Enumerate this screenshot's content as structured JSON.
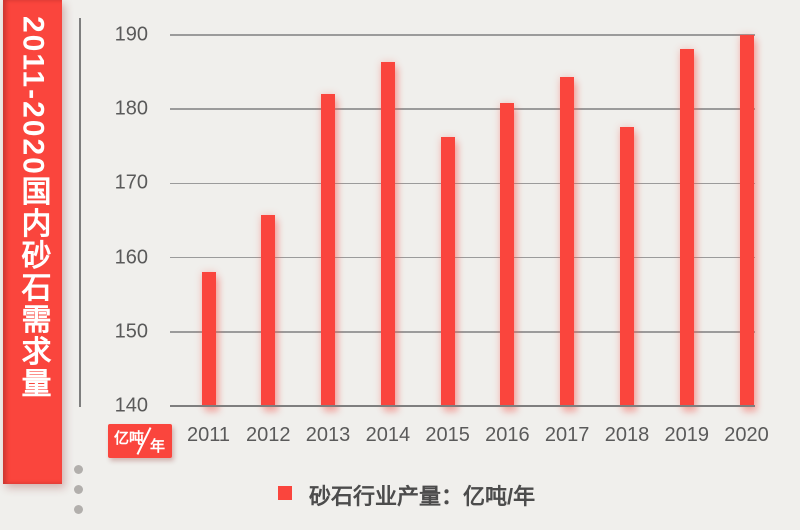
{
  "page": {
    "background": "#f0efec"
  },
  "sidebar": {
    "title": "2011-2020国内砂石需求量",
    "color": "#fa453d",
    "text_color": "#ffffff"
  },
  "axis_badge": {
    "line1": "亿吨",
    "line2": "年",
    "color": "#fa453d"
  },
  "legend": {
    "label": "砂石行业产量：亿吨/年",
    "marker_color": "#fa453d",
    "position": "bottom"
  },
  "decor": {
    "dots_count": 3
  },
  "chart_data": {
    "type": "bar",
    "title": "2011-2020国内砂石需求量",
    "series_name": "砂石行业产量",
    "unit": "亿吨/年",
    "categories": [
      "2011",
      "2012",
      "2013",
      "2014",
      "2015",
      "2016",
      "2017",
      "2018",
      "2019",
      "2020"
    ],
    "values": [
      158.1,
      165.7,
      182.1,
      186.3,
      176.3,
      180.8,
      184.3,
      177.6,
      188.1,
      190.0
    ],
    "xlabel": "",
    "ylabel": "亿吨/年",
    "ylim": [
      140,
      190
    ],
    "yticks": [
      140,
      150,
      160,
      170,
      180,
      190
    ],
    "grid": true,
    "legend_position": "bottom",
    "bar_color": "#fa453d",
    "gridline_color": "#9b9b9b",
    "tick_label_color": "#5a5a5a"
  }
}
